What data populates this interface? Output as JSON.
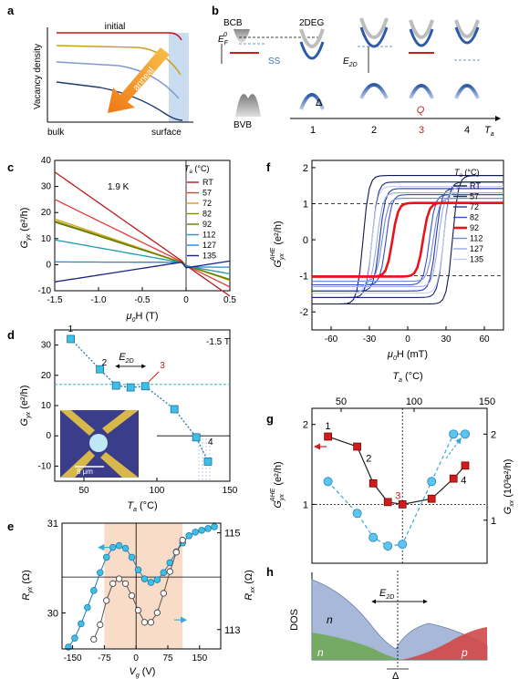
{
  "panels": {
    "a": {
      "label": "a",
      "initial": "initial",
      "ylabel": "Vacancy density",
      "x_left": "bulk",
      "x_right": "surface",
      "arrow_label": "anneal"
    },
    "b": {
      "label": "b",
      "bcb": "BCB",
      "bvb": "BVB",
      "twodeg": "2DEG",
      "ef": "E",
      "ef_sub": "F",
      "ef_sup": "0",
      "ss": "SS",
      "delta": "Δ",
      "e2d": "E",
      "e2d_sub": "2D",
      "q": "Q",
      "steps": [
        "1",
        "2",
        "3",
        "4"
      ],
      "ta": "T",
      "ta_sub": "a"
    },
    "c": {
      "label": "c",
      "temp": "1.9 K",
      "legend_title_pre": "T",
      "legend_title_sub": "a",
      "legend_title_post": " (°C)",
      "ylabel_pre": "G",
      "ylabel_sub": "yx",
      "ylabel_post": " (e²/h)",
      "xlabel_pre": "μ",
      "xlabel_sub": "0",
      "xlabel_post": "H (T)"
    },
    "d": {
      "label": "d",
      "field": "-1.5 T",
      "pt_labels": [
        "1",
        "2",
        "3",
        "4"
      ],
      "e2d": "E",
      "e2d_sub": "2D",
      "scale": "8 μm",
      "ylabel_pre": "G",
      "ylabel_sub": "yx",
      "ylabel_post": " (e²/h)",
      "xlabel_pre": "T",
      "xlabel_sub": "a",
      "xlabel_post": " (°C)"
    },
    "e": {
      "label": "e",
      "ylabel_left_pre": "R",
      "ylabel_left_sub": "yx",
      "ylabel_left_post": " (Ω)",
      "ylabel_right_pre": "R",
      "ylabel_right_sub": "xx",
      "ylabel_right_post": " (Ω)",
      "xlabel_pre": "V",
      "xlabel_sub": "g",
      "xlabel_post": " (V)"
    },
    "f": {
      "label": "f",
      "legend_title_pre": "T",
      "legend_title_sub": "a",
      "legend_title_post": " (°C)",
      "ylabel_pre": "G",
      "ylabel_sub": "yx",
      "ylabel_sup": "AHE",
      "ylabel_post": " (e²/h)",
      "xlabel_pre": "μ",
      "xlabel_sub": "0",
      "xlabel_post": "H (mT)"
    },
    "g": {
      "label": "g",
      "top_xlabel_pre": "T",
      "top_xlabel_sub": "a",
      "top_xlabel_post": " (°C)",
      "ylabel_left_pre": "G",
      "ylabel_left_sub": "yx",
      "ylabel_left_sup": "AHE",
      "ylabel_left_post": " (e²/h)",
      "ylabel_right_pre": "G",
      "ylabel_right_sub": "xx",
      "ylabel_right_post": " (10³e²/h)",
      "pt_labels": [
        "1",
        "2",
        "3",
        "4"
      ]
    },
    "h": {
      "label": "h",
      "ylabel": "DOS",
      "n_top": "n",
      "n_bottom": "n",
      "p": "p",
      "e2d": "E",
      "e2d_sub": "2D",
      "delta": "Δ"
    }
  },
  "chart_data": [
    {
      "panel": "c",
      "type": "line",
      "title": "",
      "xlabel": "μ0H (T)",
      "ylabel": "Gyx (e²/h)",
      "xlim": [
        -1.5,
        0.5
      ],
      "ylim": [
        -10,
        40
      ],
      "xticks": [
        -1.5,
        -1.0,
        -0.5,
        0,
        0.5
      ],
      "xtick_labels": [
        "-1.5",
        "-1.0",
        "-0.5",
        "0",
        "0.5"
      ],
      "yticks": [
        -10,
        0,
        10,
        20,
        30,
        40
      ],
      "ytick_labels": [
        "-10",
        "0",
        "10",
        "20",
        "30",
        "40"
      ],
      "legend": "top-right",
      "series": [
        {
          "name": "RT",
          "color": "#b71c1c",
          "slope": -23.5,
          "jump": 0.3
        },
        {
          "name": "57",
          "color": "#e53935",
          "slope": -16.5,
          "jump": 0.3
        },
        {
          "name": "72",
          "color": "#d4a017",
          "slope": -11.5,
          "jump": 0.3
        },
        {
          "name": "82",
          "color": "#8a8a00",
          "slope": -11.0,
          "jump": 0.3
        },
        {
          "name": "92",
          "color": "#5b7f00",
          "slope": -10.7,
          "jump": 0.3
        },
        {
          "name": "112",
          "color": "#1e9ea6",
          "slope": -6.0,
          "jump": 0.5
        },
        {
          "name": "127",
          "color": "#1e88e5",
          "slope": -0.1,
          "jump": 0.9
        },
        {
          "name": "135",
          "color": "#1a237e",
          "slope": 5.2,
          "jump": 1.2
        }
      ]
    },
    {
      "panel": "d",
      "type": "scatter",
      "title": "",
      "xlabel": "Ta (°C)",
      "ylabel": "Gyx (e²/h)",
      "xlim": [
        30,
        150
      ],
      "ylim": [
        -15,
        35
      ],
      "xticks": [
        50,
        100,
        150
      ],
      "xtick_labels": [
        "50",
        "100",
        "150"
      ],
      "yticks": [
        -10,
        0,
        10,
        20,
        30
      ],
      "ytick_labels": [
        "-10",
        "0",
        "10",
        "20",
        "30"
      ],
      "series": [
        {
          "name": "",
          "x": [
            41,
            61,
            72,
            82,
            92,
            112,
            127,
            135
          ],
          "y": [
            32,
            22,
            16.6,
            16,
            16.4,
            8.8,
            -0.5,
            -8.5
          ]
        }
      ],
      "dashed_hline": 17,
      "annotations": [
        "1",
        "2",
        "3",
        "4",
        "E2D",
        "-1.5 T",
        "8 μm"
      ]
    },
    {
      "panel": "e",
      "type": "line",
      "title": "",
      "xlabel": "Vg (V)",
      "xlim": [
        -175,
        200
      ],
      "xticks": [
        -150,
        -75,
        0,
        75,
        150
      ],
      "xtick_labels": [
        "-150",
        "-75",
        "0",
        "75",
        "150"
      ],
      "left_axis": {
        "label": "Ryx (Ω)",
        "ylim": [
          29.6,
          31.0
        ],
        "ticks": [
          30,
          31
        ],
        "tick_labels": [
          "30",
          "31"
        ]
      },
      "right_axis": {
        "label": "Rxx (Ω)",
        "ylim": [
          112.6,
          115.2
        ],
        "ticks": [
          113,
          115
        ],
        "tick_labels": [
          "113",
          "115"
        ]
      },
      "series": [
        {
          "name": "",
          "axis": "left",
          "x": [
            -160,
            -145,
            -130,
            -115,
            -100,
            -85,
            -70,
            -55,
            -40,
            -25,
            -10,
            5,
            20,
            35,
            50,
            65,
            80,
            95,
            110,
            125,
            140,
            155,
            170,
            185
          ],
          "y": [
            29.62,
            29.72,
            29.88,
            30.06,
            30.25,
            30.45,
            30.62,
            30.73,
            30.75,
            30.72,
            30.62,
            30.48,
            30.38,
            30.34,
            30.37,
            30.45,
            30.56,
            30.68,
            30.78,
            30.86,
            30.9,
            30.92,
            30.94,
            30.96
          ]
        },
        {
          "name": "",
          "axis": "right",
          "x": [
            -100,
            -85,
            -70,
            -55,
            -40,
            -25,
            -10,
            5,
            20,
            35,
            50,
            65,
            80,
            95,
            110
          ],
          "y": [
            112.8,
            113.1,
            113.6,
            113.95,
            114.05,
            113.95,
            113.7,
            113.4,
            113.15,
            113.15,
            113.35,
            113.75,
            114.2,
            114.6,
            114.85
          ]
        }
      ],
      "shaded_range": [
        -75,
        110
      ]
    },
    {
      "panel": "f",
      "type": "line",
      "title": "",
      "xlabel": "μ0H (mT)",
      "ylabel": "Gyx^AHE (e²/h)",
      "xlim": [
        -75,
        75
      ],
      "ylim": [
        -2.5,
        2.2
      ],
      "xticks": [
        -60,
        -30,
        0,
        30,
        60
      ],
      "xtick_labels": [
        "-60",
        "-30",
        "0",
        "30",
        "60"
      ],
      "yticks": [
        -2,
        -1,
        0,
        1,
        2
      ],
      "ytick_labels": [
        "-2",
        "-1",
        "0",
        "1",
        "2"
      ],
      "dashed_hlines": [
        1,
        -1
      ],
      "legend": "top-right",
      "series": [
        {
          "name": "RT",
          "color": "#101a4a",
          "amp": 1.78,
          "hc": 35
        },
        {
          "name": "57",
          "color": "#1a2a80",
          "amp": 1.6,
          "hc": 28
        },
        {
          "name": "72",
          "color": "#243aa8",
          "amp": 1.42,
          "hc": 22
        },
        {
          "name": "82",
          "color": "#3350c8",
          "amp": 1.25,
          "hc": 17
        },
        {
          "name": "92",
          "color": "#e8141c",
          "amp": 1.02,
          "hc": 12
        },
        {
          "name": "112",
          "color": "#6f87e0",
          "amp": 1.15,
          "hc": 20
        },
        {
          "name": "127",
          "color": "#9aaae6",
          "amp": 1.3,
          "hc": 24
        },
        {
          "name": "135",
          "color": "#c3cdf0",
          "amp": 1.48,
          "hc": 28
        }
      ]
    },
    {
      "panel": "g",
      "type": "line",
      "title": "",
      "xlabel": "Ta (°C)",
      "xlim": [
        30,
        150
      ],
      "xticks": [
        50,
        100,
        150
      ],
      "xtick_labels": [
        "50",
        "100",
        "150"
      ],
      "left_axis": {
        "label": "Gyx^AHE (e²/h)",
        "scale": "log",
        "ylim": [
          0.6,
          2.3
        ],
        "ticks": [
          1,
          2
        ],
        "tick_labels": [
          "1",
          "2"
        ]
      },
      "right_axis": {
        "label": "Gxx (10³e²/h)",
        "ylim": [
          0.5,
          2.3
        ],
        "ticks": [
          1,
          2
        ],
        "tick_labels": [
          "1",
          "2"
        ]
      },
      "series": [
        {
          "name": "",
          "axis": "left",
          "style": "solid-square",
          "color": "#d01c1c",
          "x": [
            41,
            61,
            72,
            82,
            92,
            112,
            127,
            135
          ],
          "y": [
            1.8,
            1.65,
            1.2,
            1.02,
            1.0,
            1.05,
            1.25,
            1.4
          ]
        },
        {
          "name": "",
          "axis": "right",
          "style": "dashed-circle",
          "color": "#38a8e0",
          "x": [
            41,
            61,
            72,
            82,
            92,
            112,
            127,
            135
          ],
          "y": [
            1.45,
            1.08,
            0.8,
            0.7,
            0.72,
            1.45,
            2.0,
            2.0
          ]
        }
      ],
      "dashed_vline": 92,
      "dashed_hline": 1
    }
  ]
}
